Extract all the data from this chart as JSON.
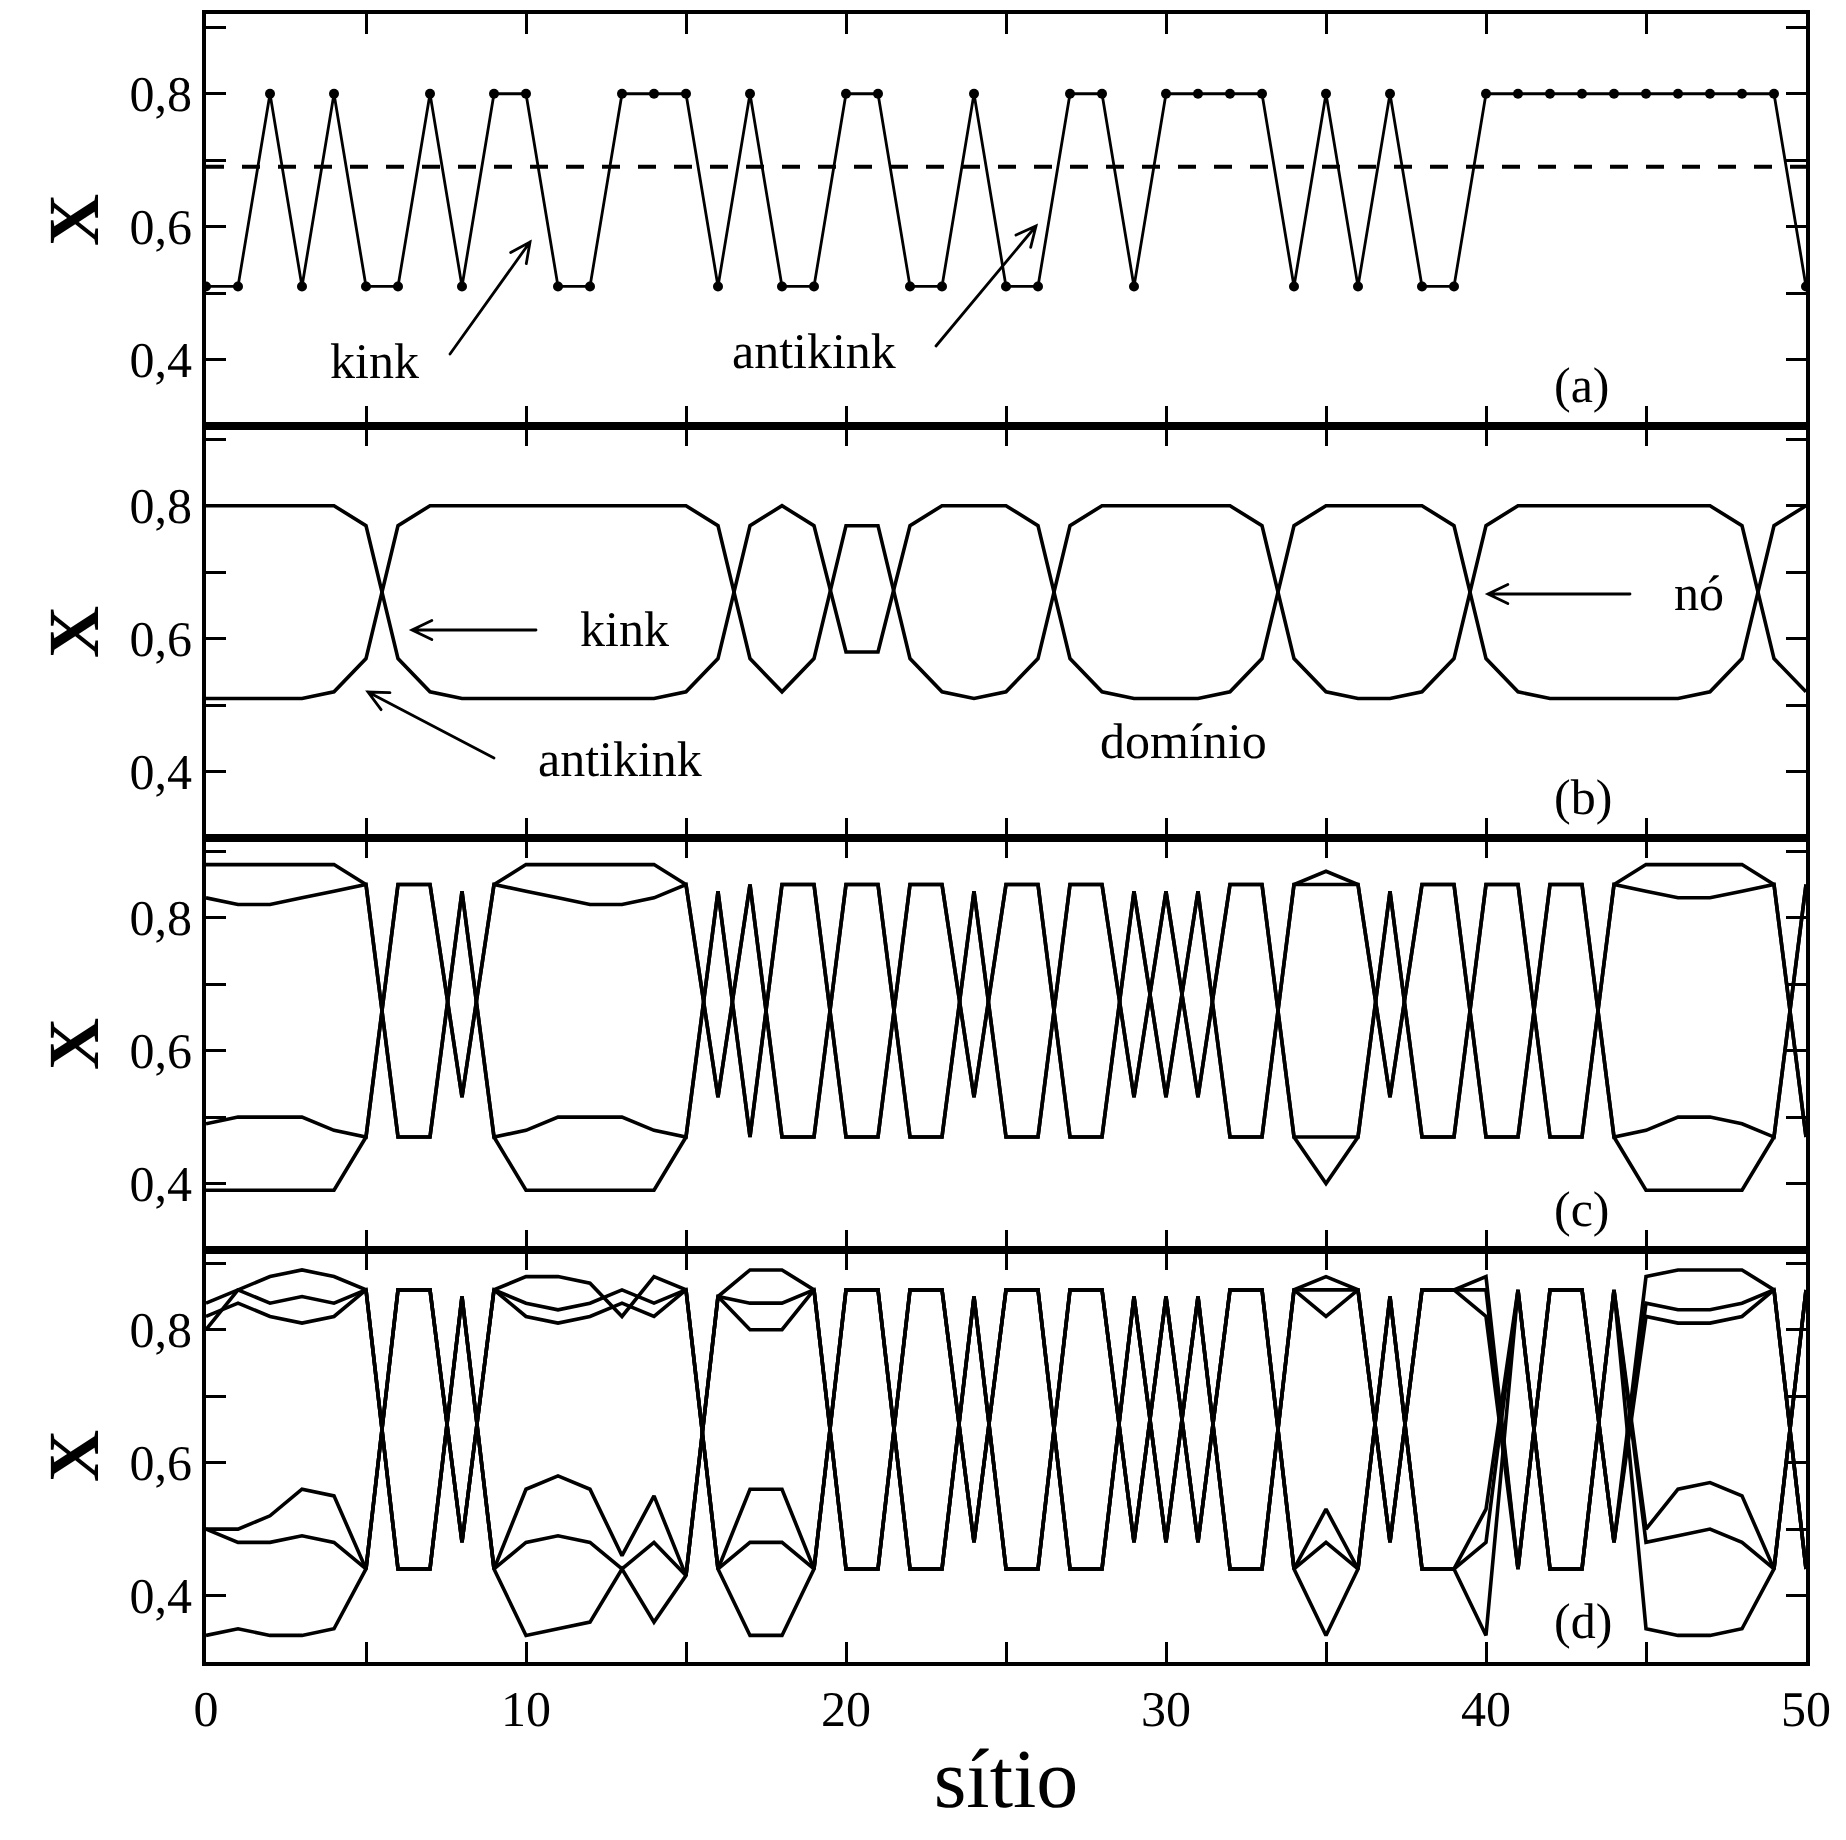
{
  "chart_data": [
    {
      "type": "line",
      "x": [
        0,
        1,
        2,
        3,
        4,
        5,
        6,
        7,
        8,
        9,
        10,
        11,
        12,
        13,
        14,
        15,
        16,
        17,
        18,
        19,
        20,
        21,
        22,
        23,
        24,
        25,
        26,
        27,
        28,
        29,
        30,
        31,
        32,
        33,
        34,
        35,
        36,
        37,
        38,
        39,
        40,
        41,
        42,
        43,
        44,
        45,
        46,
        47,
        48,
        49,
        50
      ],
      "xlim": [
        0,
        50
      ],
      "xticks": [
        0,
        {
          "value": 5,
          "label": null
        },
        10,
        {
          "value": 15,
          "label": null
        },
        20,
        {
          "value": 25,
          "label": null
        },
        30,
        {
          "value": 35,
          "label": null
        },
        40,
        {
          "value": 45,
          "label": null
        },
        50
      ],
      "ylim": [
        0.3,
        0.92
      ],
      "yticks": [
        {
          "value": 0.4,
          "label": "0,4"
        },
        {
          "value": 0.5,
          "label": null
        },
        {
          "value": 0.6,
          "label": "0,6"
        },
        {
          "value": 0.7,
          "label": null
        },
        {
          "value": 0.8,
          "label": "0,8"
        },
        {
          "value": 0.9,
          "label": null
        }
      ],
      "ylabel": "X",
      "tick_labels": "y",
      "marker": "circle",
      "series": [
        {
          "color": "#000000",
          "values": [
            0.51,
            0.51,
            0.8,
            0.51,
            0.8,
            0.51,
            0.51,
            0.8,
            0.51,
            0.8,
            0.8,
            0.51,
            0.51,
            0.8,
            0.8,
            0.8,
            0.51,
            0.8,
            0.51,
            0.51,
            0.8,
            0.8,
            0.51,
            0.51,
            0.8,
            0.51,
            0.51,
            0.8,
            0.8,
            0.51,
            0.8,
            0.8,
            0.8,
            0.8,
            0.51,
            0.8,
            0.51,
            0.8,
            0.51,
            0.51,
            0.8,
            0.8,
            0.8,
            0.8,
            0.8,
            0.8,
            0.8,
            0.8,
            0.8,
            0.8,
            0.51
          ]
        }
      ],
      "ref_lines": [
        {
          "axis": "y",
          "value": 0.69,
          "line_style": "dashed"
        }
      ],
      "annotations": [
        "kink",
        "antikink",
        "(a)"
      ]
    },
    {
      "type": "line",
      "x": [
        0,
        1,
        2,
        3,
        4,
        5,
        6,
        7,
        8,
        9,
        10,
        11,
        12,
        13,
        14,
        15,
        16,
        17,
        18,
        19,
        20,
        21,
        22,
        23,
        24,
        25,
        26,
        27,
        28,
        29,
        30,
        31,
        32,
        33,
        34,
        35,
        36,
        37,
        38,
        39,
        40,
        41,
        42,
        43,
        44,
        45,
        46,
        47,
        48,
        49,
        50
      ],
      "xlim": [
        0,
        50
      ],
      "xticks": [
        0,
        {
          "value": 5,
          "label": null
        },
        10,
        {
          "value": 15,
          "label": null
        },
        20,
        {
          "value": 25,
          "label": null
        },
        30,
        {
          "value": 35,
          "label": null
        },
        40,
        {
          "value": 45,
          "label": null
        },
        50
      ],
      "ylim": [
        0.3,
        0.92
      ],
      "yticks": [
        {
          "value": 0.4,
          "label": "0,4"
        },
        {
          "value": 0.5,
          "label": null
        },
        {
          "value": 0.6,
          "label": "0,6"
        },
        {
          "value": 0.7,
          "label": null
        },
        {
          "value": 0.8,
          "label": "0,8"
        },
        {
          "value": 0.9,
          "label": null
        }
      ],
      "ylabel": "X",
      "tick_labels": "y",
      "series": [
        {
          "color": "#000000",
          "values": [
            0.8,
            0.8,
            0.8,
            0.8,
            0.8,
            0.77,
            0.57,
            0.52,
            0.51,
            0.51,
            0.51,
            0.51,
            0.51,
            0.51,
            0.51,
            0.52,
            0.57,
            0.77,
            0.8,
            0.77,
            0.58,
            0.58,
            0.77,
            0.8,
            0.8,
            0.8,
            0.77,
            0.57,
            0.52,
            0.51,
            0.51,
            0.51,
            0.52,
            0.57,
            0.77,
            0.8,
            0.8,
            0.8,
            0.8,
            0.77,
            0.57,
            0.52,
            0.51,
            0.51,
            0.51,
            0.51,
            0.51,
            0.52,
            0.57,
            0.77,
            0.8
          ]
        },
        {
          "color": "#000000",
          "values": [
            0.51,
            0.51,
            0.51,
            0.51,
            0.52,
            0.57,
            0.77,
            0.8,
            0.8,
            0.8,
            0.8,
            0.8,
            0.8,
            0.8,
            0.8,
            0.8,
            0.77,
            0.57,
            0.52,
            0.57,
            0.77,
            0.77,
            0.57,
            0.52,
            0.51,
            0.52,
            0.57,
            0.77,
            0.8,
            0.8,
            0.8,
            0.8,
            0.8,
            0.77,
            0.57,
            0.52,
            0.51,
            0.51,
            0.52,
            0.57,
            0.77,
            0.8,
            0.8,
            0.8,
            0.8,
            0.8,
            0.8,
            0.8,
            0.77,
            0.57,
            0.52
          ]
        }
      ],
      "annotations": [
        "kink",
        "antikink",
        "nó",
        "domínio",
        "(b)"
      ]
    },
    {
      "type": "line",
      "x": [
        0,
        1,
        2,
        3,
        4,
        5,
        6,
        7,
        8,
        9,
        10,
        11,
        12,
        13,
        14,
        15,
        16,
        17,
        18,
        19,
        20,
        21,
        22,
        23,
        24,
        25,
        26,
        27,
        28,
        29,
        30,
        31,
        32,
        33,
        34,
        35,
        36,
        37,
        38,
        39,
        40,
        41,
        42,
        43,
        44,
        45,
        46,
        47,
        48,
        49,
        50
      ],
      "xlim": [
        0,
        50
      ],
      "xticks": [
        0,
        {
          "value": 5,
          "label": null
        },
        10,
        {
          "value": 15,
          "label": null
        },
        20,
        {
          "value": 25,
          "label": null
        },
        30,
        {
          "value": 35,
          "label": null
        },
        40,
        {
          "value": 45,
          "label": null
        },
        50
      ],
      "ylim": [
        0.3,
        0.92
      ],
      "yticks": [
        {
          "value": 0.4,
          "label": "0,4"
        },
        {
          "value": 0.5,
          "label": null
        },
        {
          "value": 0.6,
          "label": "0,6"
        },
        {
          "value": 0.7,
          "label": null
        },
        {
          "value": 0.8,
          "label": "0,8"
        },
        {
          "value": 0.9,
          "label": null
        }
      ],
      "ylabel": "X",
      "tick_labels": "y",
      "series": [
        {
          "color": "#000000",
          "values": [
            0.88,
            0.88,
            0.88,
            0.88,
            0.88,
            0.85,
            0.47,
            0.47,
            0.84,
            0.47,
            0.39,
            0.39,
            0.39,
            0.39,
            0.39,
            0.47,
            0.84,
            0.47,
            0.85,
            0.85,
            0.47,
            0.47,
            0.85,
            0.85,
            0.53,
            0.85,
            0.85,
            0.47,
            0.47,
            0.84,
            0.53,
            0.84,
            0.47,
            0.47,
            0.85,
            0.87,
            0.85,
            0.53,
            0.85,
            0.85,
            0.47,
            0.47,
            0.85,
            0.85,
            0.47,
            0.39,
            0.39,
            0.39,
            0.39,
            0.47,
            0.85
          ]
        },
        {
          "color": "#000000",
          "values": [
            0.39,
            0.39,
            0.39,
            0.39,
            0.39,
            0.47,
            0.85,
            0.85,
            0.53,
            0.85,
            0.88,
            0.88,
            0.88,
            0.88,
            0.88,
            0.85,
            0.53,
            0.85,
            0.47,
            0.47,
            0.85,
            0.85,
            0.47,
            0.47,
            0.84,
            0.47,
            0.47,
            0.85,
            0.85,
            0.53,
            0.84,
            0.53,
            0.85,
            0.85,
            0.47,
            0.4,
            0.47,
            0.84,
            0.47,
            0.47,
            0.85,
            0.85,
            0.47,
            0.47,
            0.85,
            0.88,
            0.88,
            0.88,
            0.88,
            0.85,
            0.47
          ]
        },
        {
          "color": "#000000",
          "values": [
            0.83,
            0.82,
            0.82,
            0.83,
            0.84,
            0.85,
            0.47,
            0.47,
            0.84,
            0.47,
            0.48,
            0.5,
            0.5,
            0.5,
            0.48,
            0.47,
            0.84,
            0.47,
            0.85,
            0.85,
            0.47,
            0.47,
            0.85,
            0.85,
            0.53,
            0.85,
            0.85,
            0.47,
            0.47,
            0.84,
            0.53,
            0.84,
            0.47,
            0.47,
            0.85,
            0.85,
            0.85,
            0.53,
            0.85,
            0.85,
            0.47,
            0.47,
            0.85,
            0.85,
            0.47,
            0.48,
            0.5,
            0.5,
            0.49,
            0.47,
            0.85
          ]
        },
        {
          "color": "#000000",
          "values": [
            0.49,
            0.5,
            0.5,
            0.5,
            0.48,
            0.47,
            0.85,
            0.85,
            0.53,
            0.85,
            0.84,
            0.83,
            0.82,
            0.82,
            0.83,
            0.85,
            0.53,
            0.85,
            0.47,
            0.47,
            0.85,
            0.85,
            0.47,
            0.47,
            0.84,
            0.47,
            0.47,
            0.85,
            0.85,
            0.53,
            0.84,
            0.53,
            0.85,
            0.85,
            0.47,
            0.47,
            0.47,
            0.84,
            0.47,
            0.47,
            0.85,
            0.85,
            0.47,
            0.47,
            0.85,
            0.84,
            0.83,
            0.83,
            0.84,
            0.85,
            0.47
          ]
        }
      ],
      "annotations": [
        "(c)"
      ]
    },
    {
      "type": "line",
      "x": [
        0,
        1,
        2,
        3,
        4,
        5,
        6,
        7,
        8,
        9,
        10,
        11,
        12,
        13,
        14,
        15,
        16,
        17,
        18,
        19,
        20,
        21,
        22,
        23,
        24,
        25,
        26,
        27,
        28,
        29,
        30,
        31,
        32,
        33,
        34,
        35,
        36,
        37,
        38,
        39,
        40,
        41,
        42,
        43,
        44,
        45,
        46,
        47,
        48,
        49,
        50
      ],
      "xlim": [
        0,
        50
      ],
      "xticks": [
        0,
        {
          "value": 5,
          "label": null
        },
        10,
        {
          "value": 15,
          "label": null
        },
        20,
        {
          "value": 25,
          "label": null
        },
        30,
        {
          "value": 35,
          "label": null
        },
        40,
        {
          "value": 45,
          "label": null
        },
        50
      ],
      "ylim": [
        0.3,
        0.92
      ],
      "yticks": [
        {
          "value": 0.4,
          "label": "0,4"
        },
        {
          "value": 0.5,
          "label": null
        },
        {
          "value": 0.6,
          "label": "0,6"
        },
        {
          "value": 0.7,
          "label": null
        },
        {
          "value": 0.8,
          "label": "0,8"
        },
        {
          "value": 0.9,
          "label": null
        }
      ],
      "ylabel": "X",
      "xlabel": "sítio",
      "series": [
        {
          "color": "#000000",
          "values": [
            0.8,
            0.86,
            0.88,
            0.89,
            0.88,
            0.86,
            0.44,
            0.44,
            0.85,
            0.44,
            0.34,
            0.35,
            0.36,
            0.44,
            0.36,
            0.43,
            0.85,
            0.89,
            0.89,
            0.86,
            0.44,
            0.44,
            0.86,
            0.86,
            0.48,
            0.86,
            0.86,
            0.44,
            0.44,
            0.85,
            0.48,
            0.85,
            0.44,
            0.44,
            0.86,
            0.88,
            0.86,
            0.48,
            0.86,
            0.86,
            0.88,
            0.44,
            0.86,
            0.86,
            0.48,
            0.88,
            0.89,
            0.89,
            0.89,
            0.86,
            0.44
          ]
        },
        {
          "color": "#000000",
          "values": [
            0.34,
            0.35,
            0.34,
            0.34,
            0.35,
            0.44,
            0.86,
            0.86,
            0.48,
            0.86,
            0.88,
            0.88,
            0.87,
            0.82,
            0.88,
            0.86,
            0.44,
            0.34,
            0.34,
            0.44,
            0.86,
            0.86,
            0.44,
            0.44,
            0.85,
            0.44,
            0.44,
            0.86,
            0.86,
            0.48,
            0.85,
            0.48,
            0.86,
            0.86,
            0.44,
            0.34,
            0.44,
            0.85,
            0.44,
            0.44,
            0.34,
            0.86,
            0.44,
            0.44,
            0.86,
            0.35,
            0.34,
            0.34,
            0.35,
            0.44,
            0.86
          ]
        },
        {
          "color": "#000000",
          "values": [
            0.82,
            0.84,
            0.82,
            0.81,
            0.82,
            0.86,
            0.44,
            0.44,
            0.85,
            0.44,
            0.56,
            0.58,
            0.56,
            0.46,
            0.55,
            0.43,
            0.85,
            0.8,
            0.8,
            0.86,
            0.44,
            0.44,
            0.86,
            0.86,
            0.48,
            0.86,
            0.86,
            0.44,
            0.44,
            0.85,
            0.48,
            0.85,
            0.44,
            0.44,
            0.86,
            0.82,
            0.86,
            0.48,
            0.86,
            0.86,
            0.82,
            0.44,
            0.86,
            0.86,
            0.48,
            0.82,
            0.81,
            0.81,
            0.82,
            0.86,
            0.44
          ]
        },
        {
          "color": "#000000",
          "values": [
            0.5,
            0.5,
            0.52,
            0.56,
            0.55,
            0.44,
            0.86,
            0.86,
            0.48,
            0.86,
            0.82,
            0.81,
            0.82,
            0.84,
            0.82,
            0.86,
            0.44,
            0.56,
            0.56,
            0.44,
            0.86,
            0.86,
            0.44,
            0.44,
            0.85,
            0.44,
            0.44,
            0.86,
            0.86,
            0.48,
            0.85,
            0.48,
            0.86,
            0.86,
            0.44,
            0.53,
            0.44,
            0.85,
            0.44,
            0.44,
            0.53,
            0.86,
            0.44,
            0.44,
            0.86,
            0.5,
            0.56,
            0.57,
            0.55,
            0.44,
            0.86
          ]
        },
        {
          "color": "#000000",
          "values": [
            0.84,
            0.86,
            0.84,
            0.85,
            0.84,
            0.86,
            0.44,
            0.44,
            0.85,
            0.44,
            0.48,
            0.49,
            0.48,
            0.44,
            0.48,
            0.43,
            0.85,
            0.84,
            0.84,
            0.86,
            0.44,
            0.44,
            0.86,
            0.86,
            0.48,
            0.86,
            0.86,
            0.44,
            0.44,
            0.85,
            0.48,
            0.85,
            0.44,
            0.44,
            0.86,
            0.86,
            0.86,
            0.48,
            0.86,
            0.86,
            0.86,
            0.44,
            0.86,
            0.86,
            0.48,
            0.84,
            0.83,
            0.83,
            0.84,
            0.86,
            0.44
          ]
        },
        {
          "color": "#000000",
          "values": [
            0.5,
            0.48,
            0.48,
            0.49,
            0.48,
            0.44,
            0.86,
            0.86,
            0.48,
            0.86,
            0.84,
            0.83,
            0.84,
            0.86,
            0.84,
            0.86,
            0.44,
            0.48,
            0.48,
            0.44,
            0.86,
            0.86,
            0.44,
            0.44,
            0.85,
            0.44,
            0.44,
            0.86,
            0.86,
            0.48,
            0.85,
            0.48,
            0.86,
            0.86,
            0.44,
            0.48,
            0.44,
            0.85,
            0.44,
            0.44,
            0.48,
            0.86,
            0.44,
            0.44,
            0.86,
            0.48,
            0.49,
            0.5,
            0.48,
            0.44,
            0.86
          ]
        }
      ],
      "annotations": [
        "(d)"
      ]
    }
  ]
}
